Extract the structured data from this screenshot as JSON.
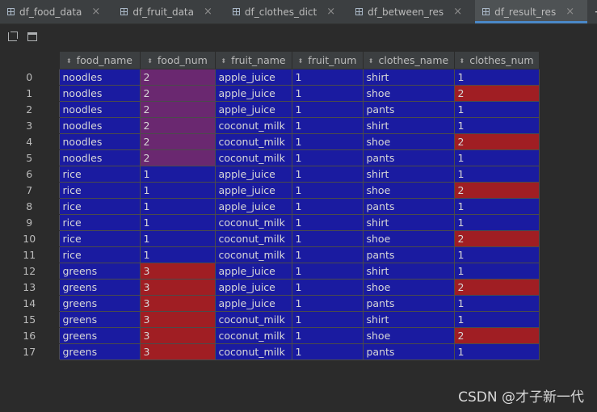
{
  "tabs": [
    {
      "label": "df_food_data",
      "active": false
    },
    {
      "label": "df_fruit_data",
      "active": false
    },
    {
      "label": "df_clothes_dict",
      "active": false
    },
    {
      "label": "df_between_res",
      "active": false
    },
    {
      "label": "df_result_res",
      "active": true
    }
  ],
  "tab_add_label": "+",
  "tab_close_label": "×",
  "toolbar": {
    "expand_icon": "expand-icon",
    "window_icon": "window-icon"
  },
  "table": {
    "columns": [
      "food_name",
      "food_num",
      "fruit_name",
      "fruit_num",
      "clothes_name",
      "clothes_num"
    ],
    "colors": {
      "cell": "#1a1ba0",
      "purple": "#6a2870",
      "red": "#a01e23"
    },
    "rows": [
      {
        "index": "0",
        "cells": [
          "noodles",
          "2",
          "apple_juice",
          "1",
          "shirt",
          "1"
        ],
        "shade": [
          "",
          "purple",
          "",
          "",
          "",
          ""
        ]
      },
      {
        "index": "1",
        "cells": [
          "noodles",
          "2",
          "apple_juice",
          "1",
          "shoe",
          "2"
        ],
        "shade": [
          "",
          "purple",
          "",
          "",
          "",
          "red"
        ]
      },
      {
        "index": "2",
        "cells": [
          "noodles",
          "2",
          "apple_juice",
          "1",
          "pants",
          "1"
        ],
        "shade": [
          "",
          "purple",
          "",
          "",
          "",
          ""
        ]
      },
      {
        "index": "3",
        "cells": [
          "noodles",
          "2",
          "coconut_milk",
          "1",
          "shirt",
          "1"
        ],
        "shade": [
          "",
          "purple",
          "",
          "",
          "",
          ""
        ]
      },
      {
        "index": "4",
        "cells": [
          "noodles",
          "2",
          "coconut_milk",
          "1",
          "shoe",
          "2"
        ],
        "shade": [
          "",
          "purple",
          "",
          "",
          "",
          "red"
        ]
      },
      {
        "index": "5",
        "cells": [
          "noodles",
          "2",
          "coconut_milk",
          "1",
          "pants",
          "1"
        ],
        "shade": [
          "",
          "purple",
          "",
          "",
          "",
          ""
        ]
      },
      {
        "index": "6",
        "cells": [
          "rice",
          "1",
          "apple_juice",
          "1",
          "shirt",
          "1"
        ],
        "shade": [
          "",
          "",
          "",
          "",
          "",
          ""
        ]
      },
      {
        "index": "7",
        "cells": [
          "rice",
          "1",
          "apple_juice",
          "1",
          "shoe",
          "2"
        ],
        "shade": [
          "",
          "",
          "",
          "",
          "",
          "red"
        ]
      },
      {
        "index": "8",
        "cells": [
          "rice",
          "1",
          "apple_juice",
          "1",
          "pants",
          "1"
        ],
        "shade": [
          "",
          "",
          "",
          "",
          "",
          ""
        ]
      },
      {
        "index": "9",
        "cells": [
          "rice",
          "1",
          "coconut_milk",
          "1",
          "shirt",
          "1"
        ],
        "shade": [
          "",
          "",
          "",
          "",
          "",
          ""
        ]
      },
      {
        "index": "10",
        "cells": [
          "rice",
          "1",
          "coconut_milk",
          "1",
          "shoe",
          "2"
        ],
        "shade": [
          "",
          "",
          "",
          "",
          "",
          "red"
        ]
      },
      {
        "index": "11",
        "cells": [
          "rice",
          "1",
          "coconut_milk",
          "1",
          "pants",
          "1"
        ],
        "shade": [
          "",
          "",
          "",
          "",
          "",
          ""
        ]
      },
      {
        "index": "12",
        "cells": [
          "greens",
          "3",
          "apple_juice",
          "1",
          "shirt",
          "1"
        ],
        "shade": [
          "",
          "red",
          "",
          "",
          "",
          ""
        ]
      },
      {
        "index": "13",
        "cells": [
          "greens",
          "3",
          "apple_juice",
          "1",
          "shoe",
          "2"
        ],
        "shade": [
          "",
          "red",
          "",
          "",
          "",
          "red"
        ]
      },
      {
        "index": "14",
        "cells": [
          "greens",
          "3",
          "apple_juice",
          "1",
          "pants",
          "1"
        ],
        "shade": [
          "",
          "red",
          "",
          "",
          "",
          ""
        ]
      },
      {
        "index": "15",
        "cells": [
          "greens",
          "3",
          "coconut_milk",
          "1",
          "shirt",
          "1"
        ],
        "shade": [
          "",
          "red",
          "",
          "",
          "",
          ""
        ]
      },
      {
        "index": "16",
        "cells": [
          "greens",
          "3",
          "coconut_milk",
          "1",
          "shoe",
          "2"
        ],
        "shade": [
          "",
          "red",
          "",
          "",
          "",
          "red"
        ]
      },
      {
        "index": "17",
        "cells": [
          "greens",
          "3",
          "coconut_milk",
          "1",
          "pants",
          "1"
        ],
        "shade": [
          "",
          "red",
          "",
          "",
          "",
          ""
        ]
      }
    ]
  },
  "watermark": "CSDN @才子新一代"
}
